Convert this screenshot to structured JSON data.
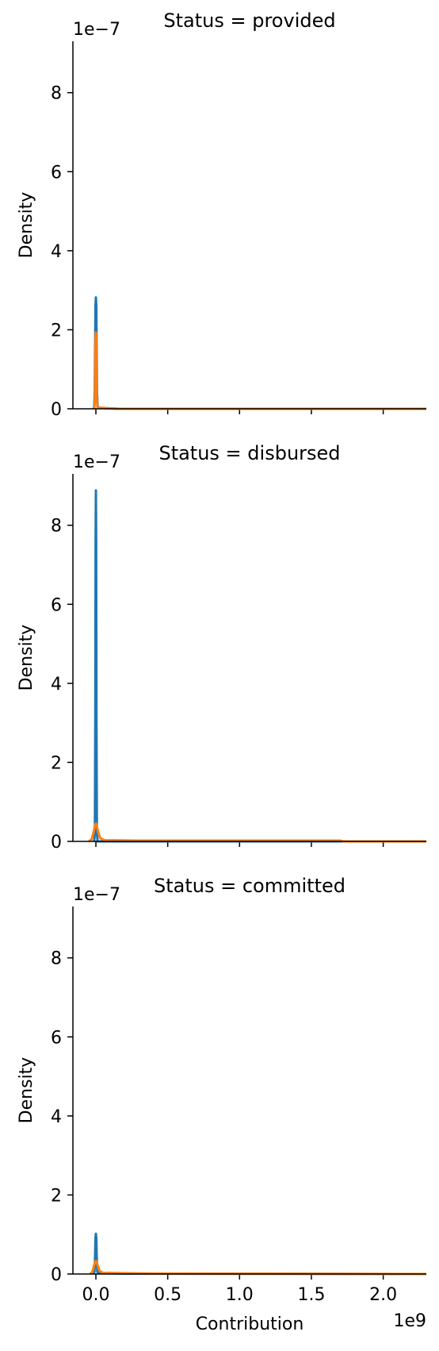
{
  "chart_data": {
    "type": "line",
    "layout": "facet-column",
    "shared_axes": true,
    "xlabel": "Contribution",
    "ylabel": "Density",
    "x_scale_label": "1e9",
    "y_scale_label": "1e−7",
    "xlim": [
      -0.16,
      2.3
    ],
    "ylim": [
      0,
      9.3
    ],
    "x_ticks": [
      0.0,
      0.5,
      1.0,
      1.5,
      2.0
    ],
    "x_tick_labels": [
      "0.0",
      "0.5",
      "1.0",
      "1.5",
      "2.0"
    ],
    "y_ticks": [
      0,
      2,
      4,
      6,
      8
    ],
    "y_tick_labels": [
      "0",
      "2",
      "4",
      "6",
      "8"
    ],
    "grid": false,
    "series_colors": [
      "#1f77b4",
      "#ff7f0e"
    ],
    "panels": [
      {
        "title": "Status = provided",
        "series": [
          {
            "color": "#1f77b4",
            "points": [
              [
                -0.02,
                0
              ],
              [
                -0.012,
                0.03
              ],
              [
                -0.008,
                0.4
              ],
              [
                -0.005,
                1.6
              ],
              [
                -0.003,
                2.6
              ],
              [
                0.0,
                2.82
              ],
              [
                0.003,
                2.6
              ],
              [
                0.005,
                1.6
              ],
              [
                0.008,
                0.4
              ],
              [
                0.012,
                0.05
              ],
              [
                0.03,
                0.02
              ],
              [
                0.1,
                0.01
              ],
              [
                0.17,
                0
              ],
              [
                2.3,
                0
              ]
            ]
          },
          {
            "color": "#ff7f0e",
            "points": [
              [
                -0.02,
                0
              ],
              [
                -0.01,
                0.03
              ],
              [
                -0.006,
                0.3
              ],
              [
                -0.004,
                1.1
              ],
              [
                -0.002,
                1.8
              ],
              [
                0.0,
                1.93
              ],
              [
                0.002,
                1.8
              ],
              [
                0.004,
                1.1
              ],
              [
                0.006,
                0.3
              ],
              [
                0.01,
                0.05
              ],
              [
                0.02,
                0.03
              ],
              [
                0.06,
                0.02
              ],
              [
                0.15,
                0
              ],
              [
                2.3,
                0
              ]
            ]
          }
        ]
      },
      {
        "title": "Status = disbursed",
        "series": [
          {
            "color": "#1f77b4",
            "points": [
              [
                -0.012,
                0
              ],
              [
                -0.007,
                0.2
              ],
              [
                -0.004,
                3.2
              ],
              [
                -0.002,
                7.6
              ],
              [
                0.0,
                8.88
              ],
              [
                0.002,
                7.6
              ],
              [
                0.004,
                3.2
              ],
              [
                0.007,
                0.2
              ],
              [
                0.012,
                0
              ],
              [
                2.3,
                0
              ]
            ]
          },
          {
            "color": "#ff7f0e",
            "points": [
              [
                -0.05,
                0
              ],
              [
                -0.03,
                0.05
              ],
              [
                -0.015,
                0.25
              ],
              [
                -0.005,
                0.42
              ],
              [
                0.0,
                0.45
              ],
              [
                0.005,
                0.42
              ],
              [
                0.015,
                0.25
              ],
              [
                0.03,
                0.08
              ],
              [
                0.06,
                0.03
              ],
              [
                0.3,
                0.02
              ],
              [
                1.0,
                0.02
              ],
              [
                1.7,
                0.02
              ],
              [
                1.72,
                0
              ],
              [
                2.3,
                0
              ]
            ]
          }
        ]
      },
      {
        "title": "Status = committed",
        "series": [
          {
            "color": "#1f77b4",
            "points": [
              [
                -0.02,
                0
              ],
              [
                -0.01,
                0.05
              ],
              [
                -0.006,
                0.4
              ],
              [
                -0.003,
                0.9
              ],
              [
                0.0,
                1.02
              ],
              [
                0.003,
                0.9
              ],
              [
                0.006,
                0.4
              ],
              [
                0.01,
                0.05
              ],
              [
                0.02,
                0.02
              ],
              [
                0.2,
                0.01
              ],
              [
                2.3,
                0
              ]
            ]
          },
          {
            "color": "#ff7f0e",
            "points": [
              [
                -0.04,
                0
              ],
              [
                -0.025,
                0.05
              ],
              [
                -0.012,
                0.22
              ],
              [
                -0.004,
                0.32
              ],
              [
                0.0,
                0.33
              ],
              [
                0.004,
                0.32
              ],
              [
                0.012,
                0.22
              ],
              [
                0.025,
                0.08
              ],
              [
                0.05,
                0.03
              ],
              [
                0.4,
                0.01
              ],
              [
                2.3,
                0
              ]
            ]
          }
        ]
      }
    ]
  }
}
